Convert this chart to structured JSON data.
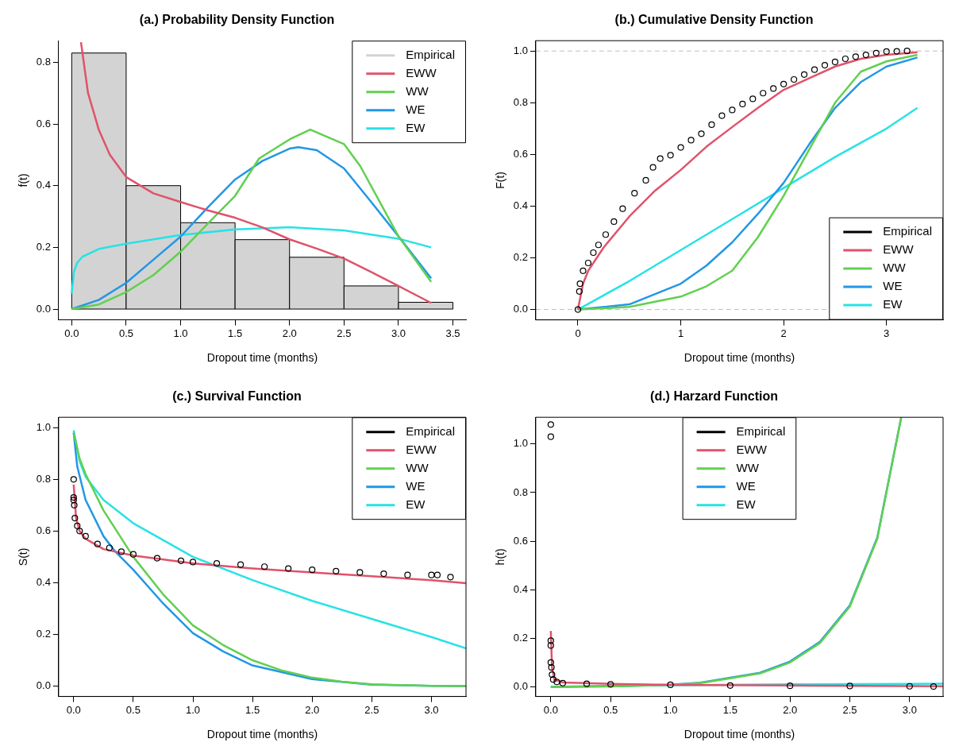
{
  "chart_data": [
    {
      "type": "histogram",
      "title": "(a.) Probability Density Function",
      "xlabel": "Dropout time (months)",
      "ylabel": "f(t)",
      "xlim": [
        -0.12,
        3.62
      ],
      "ylim": [
        -0.035,
        0.87
      ],
      "xticks": [
        {
          "value": 0,
          "label": "0.0"
        },
        {
          "value": 0.5,
          "label": "0.5"
        },
        {
          "value": 1,
          "label": "1.0"
        },
        {
          "value": 1.5,
          "label": "1.5"
        },
        {
          "value": 2,
          "label": "2.0"
        },
        {
          "value": 2.5,
          "label": "2.5"
        },
        {
          "value": 3,
          "label": "3.0"
        },
        {
          "value": 3.5,
          "label": "3.5"
        }
      ],
      "yticks": [
        {
          "value": 0,
          "label": "0.0"
        },
        {
          "value": 0.2,
          "label": "0.2"
        },
        {
          "value": 0.4,
          "label": "0.4"
        },
        {
          "value": 0.6,
          "label": "0.6"
        },
        {
          "value": 0.8,
          "label": "0.8"
        }
      ],
      "legend": "top right",
      "series": [
        {
          "name": "Empirical",
          "type": "histogram",
          "color": "#d3d3d3",
          "bins": [
            0,
            0.5,
            1,
            1.5,
            2,
            2.5,
            3,
            3.5
          ],
          "values": [
            0.83,
            0.4,
            0.28,
            0.225,
            0.168,
            0.075,
            0.022
          ]
        },
        {
          "name": "EWW",
          "type": "line",
          "color": "#df536b",
          "x": [
            0.085,
            0.15,
            0.25,
            0.35,
            0.5,
            0.75,
            1,
            1.25,
            1.5,
            1.75,
            2,
            2.25,
            2.5,
            2.75,
            3,
            3.3
          ],
          "values": [
            0.865,
            0.7,
            0.58,
            0.5,
            0.428,
            0.375,
            0.347,
            0.32,
            0.296,
            0.265,
            0.226,
            0.196,
            0.164,
            0.12,
            0.075,
            0.02
          ]
        },
        {
          "name": "WW",
          "type": "line",
          "color": "#61d04f",
          "x": [
            0,
            0.25,
            0.5,
            0.75,
            1,
            1.25,
            1.5,
            1.72,
            2,
            2.19,
            2.5,
            2.65,
            3,
            3.3
          ],
          "values": [
            0,
            0.015,
            0.055,
            0.11,
            0.186,
            0.277,
            0.367,
            0.488,
            0.55,
            0.582,
            0.535,
            0.463,
            0.236,
            0.088
          ]
        },
        {
          "name": "WE",
          "type": "line",
          "color": "#2297e6",
          "x": [
            0,
            0.25,
            0.5,
            0.75,
            1,
            1.25,
            1.5,
            1.75,
            2,
            2.08,
            2.25,
            2.5,
            2.75,
            3,
            3.3
          ],
          "values": [
            0,
            0.03,
            0.085,
            0.16,
            0.235,
            0.33,
            0.42,
            0.48,
            0.52,
            0.525,
            0.515,
            0.456,
            0.347,
            0.236,
            0.1
          ]
        },
        {
          "name": "EW",
          "type": "line",
          "color": "#28e2e5",
          "x": [
            0,
            0.02,
            0.05,
            0.1,
            0.25,
            0.5,
            1,
            1.5,
            2,
            2.5,
            3,
            3.3
          ],
          "values": [
            0.05,
            0.12,
            0.15,
            0.17,
            0.195,
            0.212,
            0.24,
            0.258,
            0.265,
            0.255,
            0.228,
            0.2
          ]
        }
      ]
    },
    {
      "type": "line",
      "title": "(b.) Cumulative Density Function",
      "xlabel": "Dropout time (months)",
      "ylabel": "F(t)",
      "xlim": [
        -0.41,
        3.55
      ],
      "ylim": [
        -0.04,
        1.04
      ],
      "xticks": [
        0,
        1,
        2,
        3
      ],
      "yticks": [
        {
          "value": 0,
          "label": "0.0"
        },
        {
          "value": 0.2,
          "label": "0.2"
        },
        {
          "value": 0.4,
          "label": "0.4"
        },
        {
          "value": 0.6,
          "label": "0.6"
        },
        {
          "value": 0.8,
          "label": "0.8"
        },
        {
          "value": 1,
          "label": "1.0"
        }
      ],
      "legend": "bottom right",
      "ref_lines": [
        {
          "axis": "y",
          "value": 0,
          "color": "#bebebe",
          "line_style": "dashed"
        },
        {
          "axis": "y",
          "value": 1,
          "color": "#bebebe",
          "line_style": "dashed"
        }
      ],
      "series": [
        {
          "name": "Empirical",
          "type": "scatter",
          "marker": "circle",
          "color": "#000000",
          "x": [
            0,
            0.014,
            0.02,
            0.05,
            0.1,
            0.15,
            0.2,
            0.27,
            0.35,
            0.435,
            0.55,
            0.66,
            0.73,
            0.8,
            0.9,
            1,
            1.1,
            1.2,
            1.3,
            1.4,
            1.5,
            1.6,
            1.7,
            1.8,
            1.9,
            2,
            2.1,
            2.2,
            2.3,
            2.4,
            2.5,
            2.6,
            2.7,
            2.8,
            2.9,
            3,
            3.1,
            3.2
          ],
          "values": [
            0,
            0.07,
            0.1,
            0.15,
            0.18,
            0.22,
            0.25,
            0.29,
            0.34,
            0.39,
            0.45,
            0.5,
            0.55,
            0.584,
            0.597,
            0.627,
            0.655,
            0.68,
            0.715,
            0.75,
            0.772,
            0.795,
            0.815,
            0.837,
            0.855,
            0.872,
            0.89,
            0.909,
            0.928,
            0.945,
            0.958,
            0.97,
            0.978,
            0.985,
            0.992,
            0.998,
            0.999,
            1
          ]
        },
        {
          "name": "EWW",
          "color": "#df536b",
          "x": [
            0,
            0.05,
            0.1,
            0.25,
            0.5,
            0.75,
            1,
            1.25,
            1.5,
            1.75,
            2,
            2.25,
            2.5,
            2.75,
            3,
            3.3
          ],
          "values": [
            0,
            0.1,
            0.15,
            0.24,
            0.36,
            0.46,
            0.54,
            0.63,
            0.706,
            0.78,
            0.85,
            0.895,
            0.94,
            0.97,
            0.985,
            0.995
          ]
        },
        {
          "name": "WW",
          "color": "#61d04f",
          "x": [
            0,
            0.5,
            1,
            1.25,
            1.5,
            1.75,
            2,
            2.25,
            2.5,
            2.75,
            3,
            3.3
          ],
          "values": [
            0,
            0.01,
            0.05,
            0.09,
            0.15,
            0.28,
            0.44,
            0.62,
            0.8,
            0.92,
            0.96,
            0.985
          ]
        },
        {
          "name": "WE",
          "color": "#2297e6",
          "x": [
            0,
            0.5,
            1,
            1.25,
            1.5,
            1.75,
            2,
            2.25,
            2.5,
            2.75,
            3,
            3.3
          ],
          "values": [
            0,
            0.02,
            0.1,
            0.17,
            0.26,
            0.37,
            0.49,
            0.64,
            0.78,
            0.88,
            0.94,
            0.975
          ]
        },
        {
          "name": "EW",
          "color": "#28e2e5",
          "x": [
            0,
            0.5,
            1,
            1.5,
            2,
            2.5,
            3,
            3.3
          ],
          "values": [
            0,
            0.11,
            0.23,
            0.35,
            0.47,
            0.59,
            0.7,
            0.78
          ]
        }
      ]
    },
    {
      "type": "line",
      "title": "(c.) Survival Function",
      "xlabel": "Dropout time (months)",
      "ylabel": "S(t)",
      "xlim": [
        -0.126,
        3.29
      ],
      "ylim": [
        -0.04,
        1.04
      ],
      "xticks": [
        {
          "value": 0,
          "label": "0.0"
        },
        {
          "value": 0.5,
          "label": "0.5"
        },
        {
          "value": 1,
          "label": "1.0"
        },
        {
          "value": 1.5,
          "label": "1.5"
        },
        {
          "value": 2,
          "label": "2.0"
        },
        {
          "value": 2.5,
          "label": "2.5"
        },
        {
          "value": 3,
          "label": "3.0"
        }
      ],
      "yticks": [
        {
          "value": 0,
          "label": "0.0"
        },
        {
          "value": 0.2,
          "label": "0.2"
        },
        {
          "value": 0.4,
          "label": "0.4"
        },
        {
          "value": 0.6,
          "label": "0.6"
        },
        {
          "value": 0.8,
          "label": "0.8"
        },
        {
          "value": 1,
          "label": "1.0"
        }
      ],
      "legend": "top right",
      "series": [
        {
          "name": "Empirical",
          "type": "scatter",
          "marker": "circle",
          "color": "#000000",
          "x": [
            0,
            0,
            0,
            0.005,
            0.01,
            0.03,
            0.05,
            0.1,
            0.2,
            0.3,
            0.4,
            0.5,
            0.7,
            0.9,
            1,
            1.2,
            1.4,
            1.6,
            1.8,
            2,
            2.2,
            2.4,
            2.6,
            2.8,
            3,
            3.05,
            3.16
          ],
          "values": [
            0.8,
            0.73,
            0.72,
            0.7,
            0.65,
            0.62,
            0.6,
            0.58,
            0.55,
            0.535,
            0.52,
            0.51,
            0.495,
            0.485,
            0.48,
            0.475,
            0.47,
            0.462,
            0.455,
            0.45,
            0.445,
            0.44,
            0.435,
            0.43,
            0.43,
            0.43,
            0.422
          ]
        },
        {
          "name": "EWW",
          "color": "#df536b",
          "x": [
            0,
            0.02,
            0.05,
            0.1,
            0.25,
            0.5,
            1,
            1.5,
            2,
            2.5,
            3,
            3.29
          ],
          "values": [
            0.78,
            0.65,
            0.6,
            0.57,
            0.53,
            0.505,
            0.475,
            0.455,
            0.44,
            0.425,
            0.41,
            0.398
          ]
        },
        {
          "name": "WW",
          "color": "#61d04f",
          "x": [
            0,
            0.05,
            0.1,
            0.25,
            0.5,
            0.75,
            1,
            1.25,
            1.5,
            1.75,
            2,
            2.25,
            2.5,
            3,
            3.29
          ],
          "values": [
            0.98,
            0.88,
            0.82,
            0.68,
            0.5,
            0.355,
            0.235,
            0.16,
            0.1,
            0.06,
            0.033,
            0.017,
            0.007,
            0.001,
            0
          ]
        },
        {
          "name": "WE",
          "color": "#2297e6",
          "x": [
            0,
            0.03,
            0.1,
            0.25,
            0.35,
            0.5,
            0.75,
            1,
            1.25,
            1.5,
            2,
            2.5,
            3,
            3.29
          ],
          "values": [
            0.98,
            0.85,
            0.72,
            0.58,
            0.52,
            0.45,
            0.32,
            0.205,
            0.135,
            0.08,
            0.027,
            0.006,
            0.001,
            0
          ]
        },
        {
          "name": "EW",
          "color": "#28e2e5",
          "x": [
            0,
            0.05,
            0.1,
            0.25,
            0.5,
            1,
            1.5,
            2,
            2.5,
            3,
            3.29
          ],
          "values": [
            0.99,
            0.87,
            0.81,
            0.72,
            0.63,
            0.5,
            0.41,
            0.33,
            0.26,
            0.19,
            0.146
          ]
        }
      ]
    },
    {
      "type": "line",
      "title": "(d.) Harzard Function",
      "xlabel": "Dropout time (months)",
      "ylabel": "h(t)",
      "xlim": [
        -0.126,
        3.28
      ],
      "ylim": [
        -0.04,
        1.11
      ],
      "xticks": [
        {
          "value": 0,
          "label": "0.0"
        },
        {
          "value": 0.5,
          "label": "0.5"
        },
        {
          "value": 1,
          "label": "1.0"
        },
        {
          "value": 1.5,
          "label": "1.5"
        },
        {
          "value": 2,
          "label": "2.0"
        },
        {
          "value": 2.5,
          "label": "2.5"
        },
        {
          "value": 3,
          "label": "3.0"
        }
      ],
      "yticks": [
        {
          "value": 0,
          "label": "0.0"
        },
        {
          "value": 0.2,
          "label": "0.2"
        },
        {
          "value": 0.4,
          "label": "0.4"
        },
        {
          "value": 0.6,
          "label": "0.6"
        },
        {
          "value": 0.8,
          "label": "0.8"
        },
        {
          "value": 1,
          "label": "1.0"
        }
      ],
      "legend": "top",
      "series": [
        {
          "name": "Empirical",
          "type": "scatter",
          "marker": "circle",
          "color": "#000000",
          "x": [
            0,
            0,
            0,
            0,
            0,
            0.005,
            0.01,
            0.02,
            0.05,
            0.1,
            0.3,
            0.5,
            1,
            1.5,
            2,
            2.5,
            3,
            3.2
          ],
          "values": [
            1.08,
            1.03,
            0.19,
            0.17,
            0.1,
            0.08,
            0.05,
            0.03,
            0.02,
            0.015,
            0.012,
            0.01,
            0.008,
            0.005,
            0.004,
            0.003,
            0.002,
            0.001
          ]
        },
        {
          "name": "EWW",
          "color": "#df536b",
          "x": [
            0,
            0.01,
            0.03,
            0.1,
            0.5,
            1,
            2,
            3,
            3.28
          ],
          "values": [
            0.23,
            0.08,
            0.03,
            0.018,
            0.012,
            0.008,
            0.005,
            0.003,
            0.002
          ]
        },
        {
          "name": "WW",
          "color": "#61d04f",
          "x": [
            0,
            0.5,
            1,
            1.25,
            1.5,
            1.75,
            2,
            2.25,
            2.5,
            2.73,
            2.93
          ],
          "values": [
            0,
            0.001,
            0.008,
            0.015,
            0.035,
            0.055,
            0.1,
            0.18,
            0.33,
            0.61,
            1.11
          ]
        },
        {
          "name": "WE",
          "color": "#2297e6",
          "x": [
            0,
            0.5,
            1,
            1.25,
            1.5,
            1.75,
            2,
            2.25,
            2.5,
            2.73,
            2.93
          ],
          "values": [
            0,
            0.002,
            0.009,
            0.017,
            0.037,
            0.058,
            0.104,
            0.185,
            0.335,
            0.615,
            1.11
          ]
        },
        {
          "name": "EW",
          "color": "#28e2e5",
          "x": [
            0,
            0.5,
            1,
            2,
            3,
            3.28
          ],
          "values": [
            0,
            0.004,
            0.006,
            0.01,
            0.012,
            0.013
          ]
        }
      ]
    }
  ]
}
